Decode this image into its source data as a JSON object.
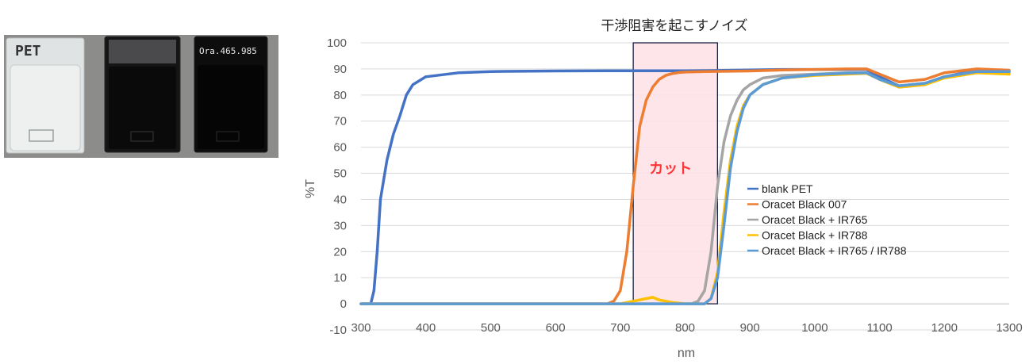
{
  "photo": {
    "sample_labels": [
      "PET",
      "",
      "Ora.465.985"
    ],
    "colors": {
      "background": "#8c8c8a",
      "clear": "#e9ecec",
      "black": "#0b0b0c"
    }
  },
  "colors": {
    "blank_pet": "#4472c4",
    "oracet_007": "#ed7d31",
    "ir765": "#a5a5a5",
    "ir788": "#ffc000",
    "ir765_788": "#5b9bd5",
    "grid": "#d9d9d9",
    "cut_fill": "#fde0e6",
    "cut_border": "#1a2340",
    "cut_text": "#ff3333"
  },
  "chart_data": {
    "type": "line",
    "title": "干渉阻害を起こすノイズ",
    "xlabel": "nm",
    "ylabel": "%T",
    "xlim": [
      300,
      1300
    ],
    "ylim": [
      -10,
      100
    ],
    "xticks": [
      "300",
      "400",
      "500",
      "600",
      "700",
      "800",
      "900",
      "1000",
      "1100",
      "1200",
      "1300"
    ],
    "yticks": [
      "-10",
      "0",
      "10",
      "20",
      "30",
      "40",
      "50",
      "60",
      "70",
      "80",
      "90",
      "100"
    ],
    "grid": "horizontal",
    "legend_position": "right-middle",
    "annotation": {
      "label": "カット",
      "x_range": [
        720,
        850
      ]
    },
    "series": [
      {
        "name": "blank PET",
        "color_key": "blank_pet",
        "x": [
          300,
          315,
          320,
          325,
          330,
          340,
          350,
          360,
          370,
          380,
          400,
          450,
          500,
          600,
          700,
          800,
          850,
          900,
          950,
          1000,
          1050,
          1080,
          1100,
          1130,
          1170,
          1200,
          1250,
          1300
        ],
        "y": [
          0,
          0,
          5,
          20,
          40,
          55,
          65,
          72,
          80,
          84,
          87,
          88.5,
          89,
          89.2,
          89.3,
          89.3,
          89.4,
          89.6,
          89.8,
          89.8,
          89.8,
          89.8,
          87,
          83.5,
          84.5,
          87,
          89.5,
          89
        ]
      },
      {
        "name": "Oracet Black 007",
        "color_key": "oracet_007",
        "x": [
          300,
          680,
          690,
          700,
          710,
          720,
          730,
          740,
          750,
          760,
          770,
          780,
          790,
          800,
          830,
          900,
          950,
          1000,
          1050,
          1080,
          1100,
          1130,
          1170,
          1200,
          1250,
          1300
        ],
        "y": [
          0,
          0,
          1,
          5,
          20,
          45,
          68,
          78,
          83,
          86,
          87.5,
          88.2,
          88.6,
          88.8,
          89,
          89.2,
          89.6,
          89.8,
          90,
          90,
          88,
          85,
          86,
          88.5,
          90,
          89.5
        ]
      },
      {
        "name": "Oracet Black + IR765",
        "color_key": "ir765",
        "x": [
          300,
          810,
          820,
          830,
          840,
          850,
          860,
          870,
          880,
          890,
          900,
          920,
          950,
          1000,
          1050,
          1080,
          1100,
          1130,
          1170,
          1200,
          1250,
          1300
        ],
        "y": [
          0,
          0,
          1,
          5,
          20,
          45,
          62,
          72,
          78,
          82,
          84,
          86.5,
          87.5,
          88,
          88.5,
          88.5,
          86,
          83,
          84,
          87,
          89,
          88.5
        ]
      },
      {
        "name": "Oracet Black + IR788",
        "color_key": "ir788",
        "x": [
          300,
          700,
          720,
          740,
          750,
          760,
          780,
          800,
          830,
          840,
          850,
          860,
          870,
          880,
          890,
          900,
          920,
          950,
          1000,
          1050,
          1080,
          1100,
          1130,
          1170,
          1200,
          1250,
          1300
        ],
        "y": [
          0,
          0,
          1,
          2,
          2.5,
          1.5,
          0.5,
          0,
          0,
          2,
          12,
          35,
          55,
          68,
          76,
          80,
          84,
          86.5,
          87.5,
          88,
          88.3,
          86,
          83,
          84,
          86.5,
          88.5,
          88
        ]
      },
      {
        "name": "Oracet Black + IR765 / IR788",
        "color_key": "ir765_788",
        "x": [
          300,
          830,
          840,
          850,
          860,
          870,
          880,
          890,
          900,
          920,
          950,
          1000,
          1050,
          1080,
          1100,
          1130,
          1170,
          1200,
          1250,
          1300
        ],
        "y": [
          0,
          0,
          2,
          10,
          30,
          52,
          66,
          75,
          80,
          84,
          86.5,
          87.8,
          88.4,
          88.5,
          86,
          83.5,
          84.5,
          87,
          89,
          89
        ]
      }
    ]
  }
}
